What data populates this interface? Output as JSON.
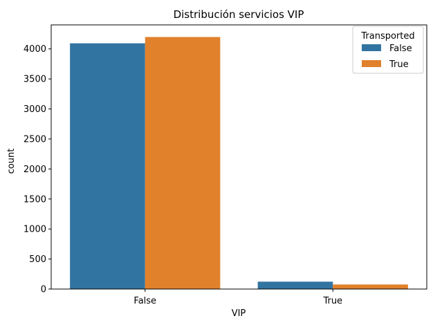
{
  "chart_data": {
    "type": "bar",
    "title": "Distribución servicios VIP",
    "xlabel": "VIP",
    "ylabel": "count",
    "categories": [
      "False",
      "True"
    ],
    "series": [
      {
        "name": "False",
        "color": "#3274a1",
        "values": [
          4093,
          123
        ]
      },
      {
        "name": "True",
        "color": "#e1812c",
        "values": [
          4198,
          76
        ]
      }
    ],
    "ylim": [
      0,
      4400
    ],
    "yticks": [
      0,
      500,
      1000,
      1500,
      2000,
      2500,
      3000,
      3500,
      4000
    ],
    "legend": {
      "title": "Transported",
      "position": "top-right"
    },
    "grid": false
  }
}
